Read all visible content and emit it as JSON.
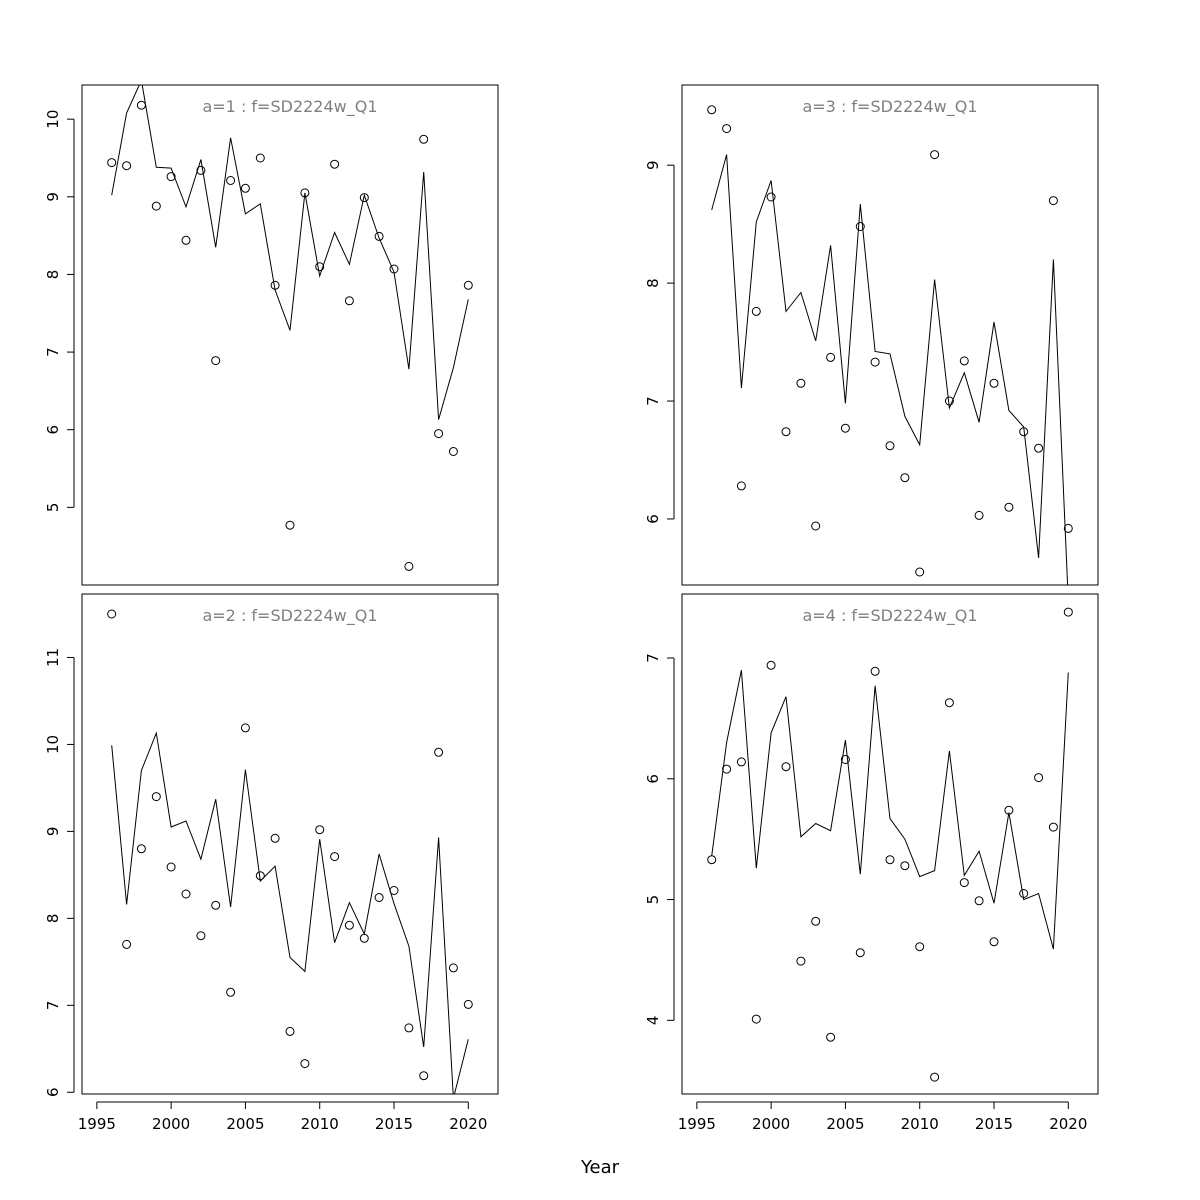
{
  "figure": {
    "xlabel": "Year",
    "line_color": "#000000",
    "title_color": "#808080"
  },
  "chart_data": [
    {
      "type": "line",
      "title": "a=1  :  f=SD2224w_Q1",
      "xlabel": "",
      "ylabel": "",
      "xlim": [
        1994,
        2022
      ],
      "ylim": [
        4.0,
        10.44
      ],
      "xticks": [],
      "yticks": [
        5,
        6,
        7,
        8,
        9,
        10
      ],
      "grid": false,
      "series": [
        {
          "style": "points",
          "x": [
            1996,
            1997,
            1998,
            1999,
            2000,
            2001,
            2002,
            2003,
            2004,
            2005,
            2006,
            2007,
            2008,
            2009,
            2010,
            2011,
            2012,
            2013,
            2014,
            2015,
            2016,
            2017,
            2018,
            2019,
            2020
          ],
          "values": [
            9.44,
            9.4,
            10.18,
            8.88,
            9.26,
            8.44,
            9.34,
            6.89,
            9.21,
            9.11,
            9.5,
            7.86,
            4.77,
            9.05,
            8.1,
            9.42,
            7.66,
            8.99,
            8.49,
            8.07,
            4.24,
            9.74,
            5.95,
            5.72,
            7.86
          ]
        },
        {
          "style": "line",
          "x": [
            1996,
            1997,
            1998,
            1999,
            2000,
            2001,
            2002,
            2003,
            2004,
            2005,
            2006,
            2007,
            2008,
            2009,
            2010,
            2011,
            2012,
            2013,
            2014,
            2015,
            2016,
            2017,
            2018,
            2019,
            2020
          ],
          "values": [
            9.02,
            10.08,
            10.5,
            9.38,
            9.37,
            8.87,
            9.48,
            8.35,
            9.76,
            8.78,
            8.91,
            7.8,
            7.28,
            9.05,
            7.98,
            8.54,
            8.13,
            9.02,
            8.47,
            8.03,
            6.78,
            9.32,
            6.13,
            6.8,
            7.68
          ]
        }
      ]
    },
    {
      "type": "line",
      "title": "a=3  :  f=SD2224w_Q1",
      "xlabel": "",
      "ylabel": "",
      "xlim": [
        1994,
        2022
      ],
      "ylim": [
        5.44,
        9.68
      ],
      "xticks": [],
      "yticks": [
        6,
        7,
        8,
        9
      ],
      "grid": false,
      "series": [
        {
          "style": "points",
          "x": [
            1996,
            1997,
            1998,
            1999,
            2000,
            2001,
            2002,
            2003,
            2004,
            2005,
            2006,
            2007,
            2008,
            2009,
            2010,
            2011,
            2012,
            2013,
            2014,
            2015,
            2016,
            2017,
            2018,
            2019,
            2020
          ],
          "values": [
            9.47,
            9.31,
            6.28,
            7.76,
            8.73,
            6.74,
            7.15,
            5.94,
            7.37,
            6.77,
            8.48,
            7.33,
            6.62,
            6.35,
            5.55,
            9.09,
            7.0,
            7.34,
            6.03,
            7.15,
            6.1,
            6.74,
            6.6,
            8.7,
            5.92
          ]
        },
        {
          "style": "line",
          "x": [
            1996,
            1997,
            1998,
            1999,
            2000,
            2001,
            2002,
            2003,
            2004,
            2005,
            2006,
            2007,
            2008,
            2009,
            2010,
            2011,
            2012,
            2013,
            2014,
            2015,
            2016,
            2017,
            2018,
            2019,
            2020
          ],
          "values": [
            8.62,
            9.09,
            7.11,
            8.52,
            8.87,
            7.76,
            7.92,
            7.51,
            8.32,
            6.98,
            8.67,
            7.42,
            7.4,
            6.87,
            6.63,
            8.03,
            6.94,
            7.24,
            6.82,
            7.67,
            6.92,
            6.78,
            5.67,
            8.2,
            5.3
          ]
        }
      ]
    },
    {
      "type": "line",
      "title": "a=2  :  f=SD2224w_Q1",
      "xlabel": "",
      "ylabel": "",
      "xlim": [
        1994,
        2022
      ],
      "ylim": [
        5.98,
        11.73
      ],
      "xticks": [
        1995,
        2000,
        2005,
        2010,
        2015,
        2020
      ],
      "yticks": [
        6,
        7,
        8,
        9,
        10,
        11
      ],
      "grid": false,
      "series": [
        {
          "style": "points",
          "x": [
            1996,
            1997,
            1998,
            1999,
            2000,
            2001,
            2002,
            2003,
            2004,
            2005,
            2006,
            2007,
            2008,
            2009,
            2010,
            2011,
            2012,
            2013,
            2014,
            2015,
            2016,
            2017,
            2018,
            2019,
            2020
          ],
          "values": [
            11.5,
            7.7,
            8.8,
            9.4,
            8.59,
            8.28,
            7.8,
            8.15,
            7.15,
            10.19,
            8.49,
            8.92,
            6.7,
            6.33,
            9.02,
            8.71,
            7.92,
            7.77,
            8.24,
            8.32,
            6.74,
            6.19,
            9.91,
            7.43,
            7.01
          ]
        },
        {
          "style": "line",
          "x": [
            1996,
            1997,
            1998,
            1999,
            2000,
            2001,
            2002,
            2003,
            2004,
            2005,
            2006,
            2007,
            2008,
            2009,
            2010,
            2011,
            2012,
            2013,
            2014,
            2015,
            2016,
            2017,
            2018,
            2019,
            2020
          ],
          "values": [
            9.99,
            8.16,
            9.7,
            10.13,
            9.05,
            9.12,
            8.68,
            9.37,
            8.13,
            9.71,
            8.43,
            8.6,
            7.55,
            7.39,
            8.91,
            7.72,
            8.18,
            7.82,
            8.74,
            8.17,
            7.68,
            6.52,
            8.93,
            5.93,
            6.61
          ]
        }
      ]
    },
    {
      "type": "line",
      "title": "a=4  :  f=SD2224w_Q1",
      "xlabel": "",
      "ylabel": "",
      "xlim": [
        1994,
        2022
      ],
      "ylim": [
        3.39,
        7.53
      ],
      "xticks": [
        1995,
        2000,
        2005,
        2010,
        2015,
        2020
      ],
      "yticks": [
        4,
        5,
        6,
        7
      ],
      "grid": false,
      "series": [
        {
          "style": "points",
          "x": [
            1996,
            1997,
            1998,
            1999,
            2000,
            2001,
            2002,
            2003,
            2004,
            2005,
            2006,
            2007,
            2008,
            2009,
            2010,
            2011,
            2012,
            2013,
            2014,
            2015,
            2016,
            2017,
            2018,
            2019,
            2020
          ],
          "values": [
            5.33,
            6.08,
            6.14,
            4.01,
            6.94,
            6.1,
            4.49,
            4.82,
            3.86,
            6.16,
            4.56,
            6.89,
            5.33,
            5.28,
            4.61,
            3.53,
            6.63,
            5.14,
            4.99,
            4.65,
            5.74,
            5.05,
            6.01,
            5.6,
            7.38
          ]
        },
        {
          "style": "line",
          "x": [
            1996,
            1997,
            1998,
            1999,
            2000,
            2001,
            2002,
            2003,
            2004,
            2005,
            2006,
            2007,
            2008,
            2009,
            2010,
            2011,
            2012,
            2013,
            2014,
            2015,
            2016,
            2017,
            2018,
            2019,
            2020
          ],
          "values": [
            5.36,
            6.3,
            6.9,
            5.26,
            6.38,
            6.68,
            5.52,
            5.63,
            5.57,
            6.32,
            5.21,
            6.77,
            5.67,
            5.5,
            5.19,
            5.24,
            6.23,
            5.2,
            5.4,
            4.97,
            5.72,
            5.0,
            5.05,
            4.59,
            6.88
          ]
        }
      ]
    }
  ]
}
